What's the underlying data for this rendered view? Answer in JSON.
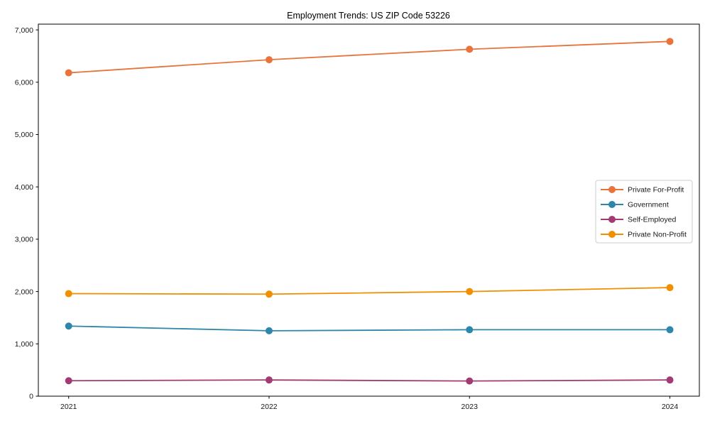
{
  "window": {
    "background": "#ffffff",
    "axis_color": "#000000",
    "text_color": "#191919",
    "legend_border_color": "#cccccc",
    "legend_background": "#ffffff"
  },
  "chart_data": {
    "type": "line",
    "title": "Employment Trends: US ZIP Code 53226",
    "xlabel": "",
    "ylabel": "",
    "categories": [
      "2021",
      "2022",
      "2023",
      "2024"
    ],
    "series": [
      {
        "name": "Private For-Profit",
        "color": "#E8743B",
        "values": [
          6180,
          6430,
          6630,
          6780
        ]
      },
      {
        "name": "Government",
        "color": "#2E86AB",
        "values": [
          1340,
          1250,
          1270,
          1270
        ]
      },
      {
        "name": "Self-Employed",
        "color": "#A23B72",
        "values": [
          295,
          310,
          290,
          310
        ]
      },
      {
        "name": "Private Non-Profit",
        "color": "#F18F01",
        "values": [
          1960,
          1950,
          2000,
          2075
        ]
      }
    ],
    "ylim": [
      0,
      7110
    ],
    "yticks": [
      0,
      1000,
      2000,
      3000,
      4000,
      5000,
      6000,
      7000
    ],
    "ytick_labels": [
      "0",
      "1,000",
      "2,000",
      "3,000",
      "4,000",
      "5,000",
      "6,000",
      "7,000"
    ],
    "grid": false,
    "marker": "circle",
    "marker_radius": 5,
    "line_width": 1.8,
    "legend_position": "center-right"
  }
}
